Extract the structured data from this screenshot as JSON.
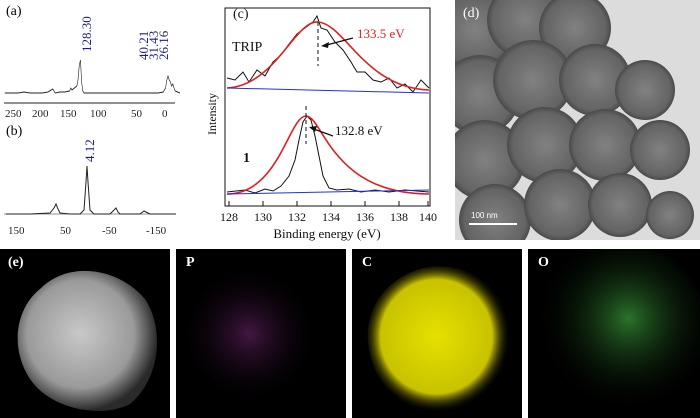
{
  "panels": {
    "a": {
      "label": "(a)",
      "peaks": [
        "128.30",
        "40.21",
        "31.43",
        "26.16"
      ],
      "ticks": [
        "250",
        "200",
        "150",
        "100",
        "50",
        "0"
      ]
    },
    "b": {
      "label": "(b)",
      "peaks": [
        "4.12"
      ],
      "ticks": [
        "150",
        "50",
        "-50",
        "-150"
      ]
    },
    "c": {
      "label": "(c)",
      "ylabel": "Intensity",
      "xlabel": "Binding energy (eV)",
      "ticks": [
        "128",
        "130",
        "132",
        "134",
        "136",
        "138",
        "140"
      ],
      "trip_label": "TRIP",
      "trip_peak": "133.5 eV",
      "one_label": "1",
      "one_peak": "132.8 eV",
      "colors": {
        "fit": "#e02020",
        "baseline": "#2030e0",
        "raw": "#111111",
        "peak_label": "#e02020"
      }
    },
    "d": {
      "label": "(d)",
      "scale": "100 nm"
    },
    "e": {
      "label": "(e)"
    },
    "P": {
      "label": "P",
      "color": "#c040c0"
    },
    "C": {
      "label": "C",
      "color": "#e6e000"
    },
    "O": {
      "label": "O",
      "color": "#40c040"
    }
  },
  "chart_data": [
    {
      "type": "line",
      "title": "",
      "xlabel": "",
      "ylabel": "",
      "x_reversed": true,
      "xlim": [
        260,
        0
      ],
      "peaks": [
        {
          "x": 128.3,
          "label": "128.30"
        },
        {
          "x": 40.21,
          "label": "40.21"
        },
        {
          "x": 31.43,
          "label": "31.43"
        },
        {
          "x": 26.16,
          "label": "26.16"
        }
      ]
    },
    {
      "type": "line",
      "title": "",
      "xlabel": "",
      "ylabel": "",
      "x_reversed": true,
      "xlim": [
        180,
        -180
      ],
      "peaks": [
        {
          "x": 4.12,
          "label": "4.12"
        }
      ]
    },
    {
      "type": "line",
      "title": "",
      "xlabel": "Binding energy (eV)",
      "ylabel": "Intensity",
      "xlim": [
        128,
        140
      ],
      "series": [
        {
          "name": "TRIP",
          "peak": 133.5
        },
        {
          "name": "1",
          "peak": 132.8
        }
      ]
    }
  ]
}
